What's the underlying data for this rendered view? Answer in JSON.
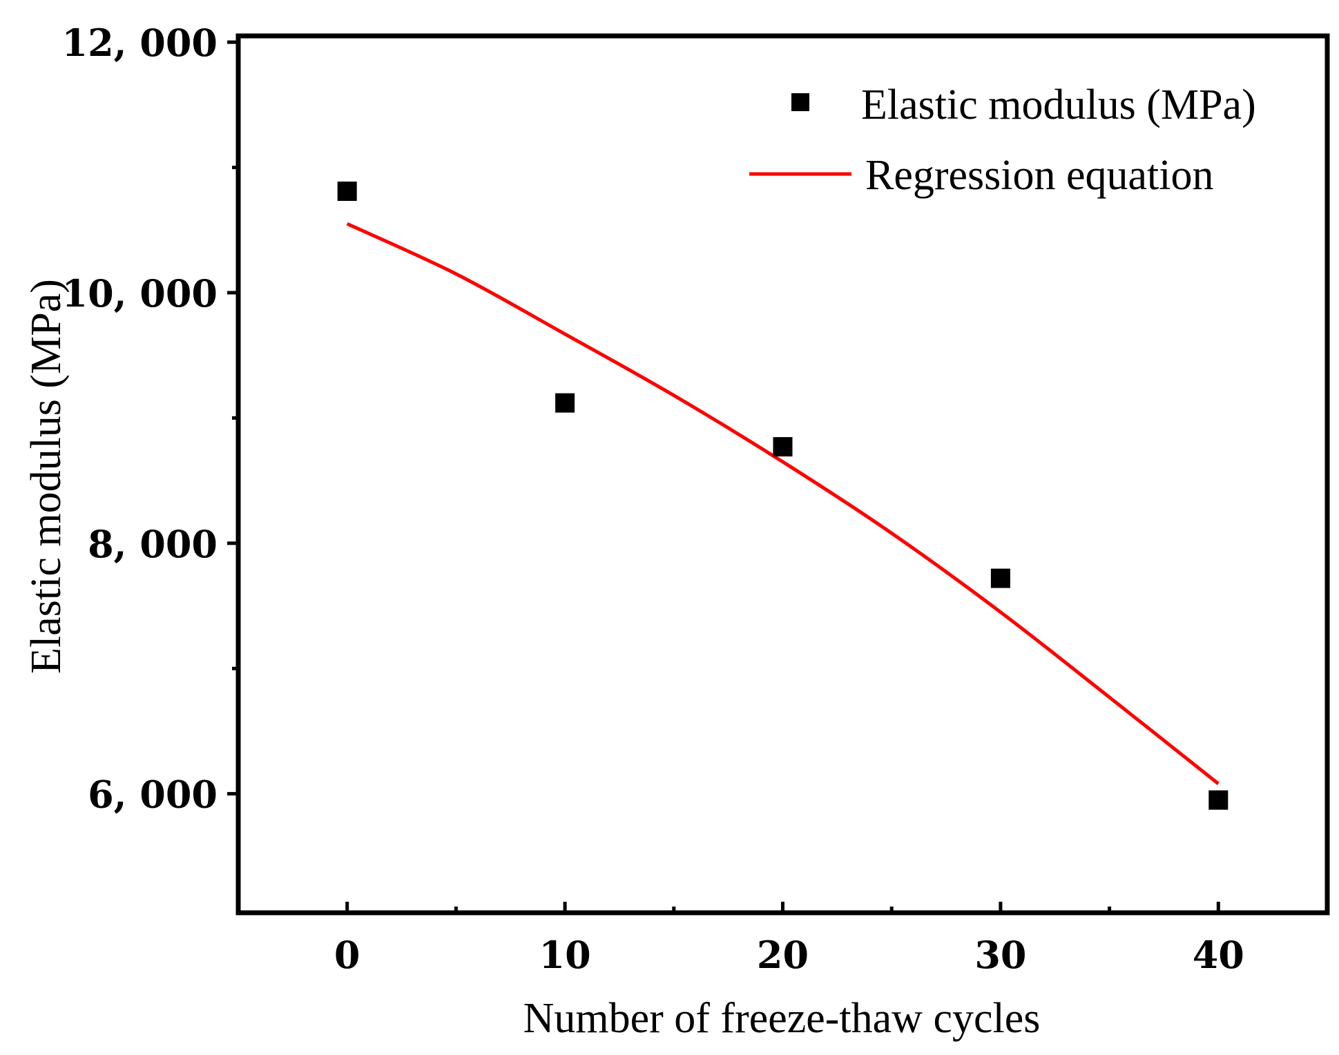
{
  "chart_data": {
    "type": "scatter",
    "title": "",
    "xlabel": "Number of freeze-thaw cycles",
    "ylabel": "Elastic modulus (MPa)",
    "xlim": [
      -5,
      45
    ],
    "ylim": [
      5050,
      12050
    ],
    "x_ticks": [
      0,
      10,
      20,
      30,
      40
    ],
    "x_tick_labels": [
      "0",
      "10",
      "20",
      "30",
      "40"
    ],
    "x_minor_ticks": [
      5,
      15,
      25,
      35
    ],
    "y_ticks": [
      6000,
      8000,
      10000,
      12000
    ],
    "y_tick_labels": [
      "6, 000",
      "8, 000",
      "10, 000",
      "12, 000"
    ],
    "y_minor_ticks": [
      7000,
      9000,
      11000
    ],
    "grid": false,
    "legend_position": "top-right",
    "series": [
      {
        "name": "Elastic modulus (MPa)",
        "kind": "scatter",
        "marker": "square",
        "color": "#000000",
        "x": [
          0,
          10,
          20,
          30,
          40
        ],
        "y": [
          10810,
          9120,
          8770,
          7720,
          5950
        ]
      },
      {
        "name": "Regression equation",
        "kind": "line",
        "color": "#ff0000",
        "x": [
          0,
          5,
          10,
          15,
          20,
          25,
          30,
          35,
          40
        ],
        "y": [
          10550,
          10150,
          9670,
          9180,
          8650,
          8080,
          7450,
          6770,
          6080
        ]
      }
    ]
  }
}
